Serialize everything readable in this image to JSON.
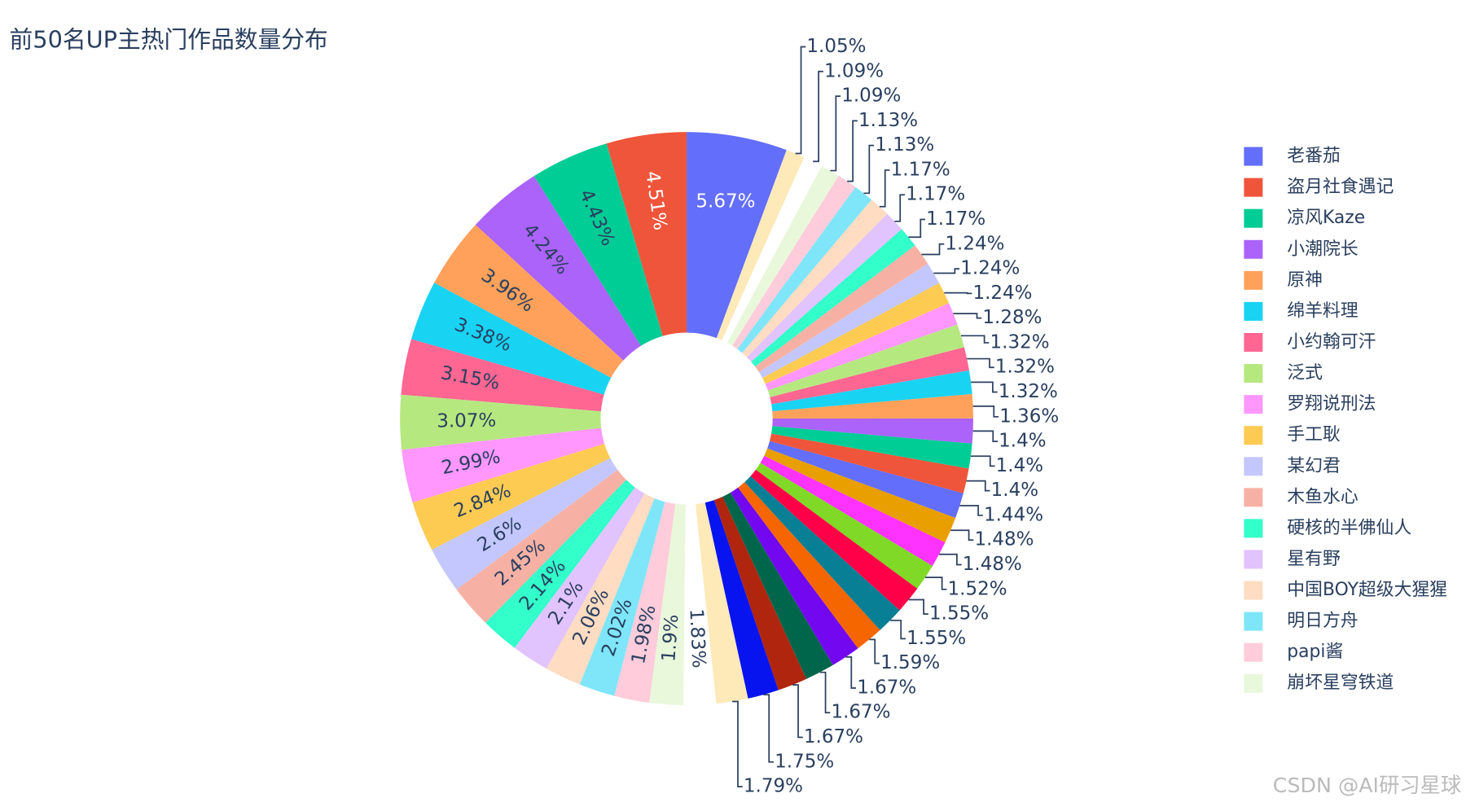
{
  "chart_data": {
    "type": "donut",
    "title": "前50名UP主热门作品数量分布",
    "watermark": "CSDN @AI研习星球",
    "categories": [
      "老番茄",
      "盗月社食遇记",
      "凉风Kaze",
      "小潮院长",
      "原神",
      "绵羊料理",
      "小约翰可汗",
      "泛式",
      "罗翔说刑法",
      "手工耿",
      "某幻君",
      "木鱼水心",
      "硬核的半佛仙人",
      "星有野",
      "中国BOY超级大猩猩",
      "明日方舟",
      "papi酱",
      "崩坏星穹铁道",
      null,
      null,
      null,
      null,
      null,
      null,
      null,
      null,
      null,
      null,
      null,
      null,
      null,
      null,
      null,
      null,
      null,
      null,
      null,
      null,
      null,
      null,
      null,
      null,
      null,
      null,
      null,
      null,
      null,
      null,
      null,
      null
    ],
    "values": [
      5.67,
      4.51,
      4.43,
      4.24,
      3.96,
      3.38,
      3.15,
      3.07,
      2.99,
      2.84,
      2.6,
      2.45,
      2.14,
      2.1,
      2.06,
      2.02,
      1.98,
      1.9,
      1.83,
      1.79,
      1.75,
      1.67,
      1.67,
      1.67,
      1.59,
      1.55,
      1.55,
      1.52,
      1.48,
      1.48,
      1.44,
      1.4,
      1.4,
      1.4,
      1.36,
      1.32,
      1.32,
      1.32,
      1.28,
      1.24,
      1.24,
      1.24,
      1.17,
      1.17,
      1.17,
      1.13,
      1.13,
      1.09,
      1.09,
      1.05
    ],
    "value_labels": [
      "5.67%",
      "4.51%",
      "4.43%",
      "4.24%",
      "3.96%",
      "3.38%",
      "3.15%",
      "3.07%",
      "2.99%",
      "2.84%",
      "2.6%",
      "2.45%",
      "2.14%",
      "2.1%",
      "2.06%",
      "2.02%",
      "1.98%",
      "1.9%",
      "1.83%",
      "1.79%",
      "1.75%",
      "1.67%",
      "1.67%",
      "1.67%",
      "1.59%",
      "1.55%",
      "1.55%",
      "1.52%",
      "1.48%",
      "1.48%",
      "1.44%",
      "1.4%",
      "1.4%",
      "1.4%",
      "1.36%",
      "1.32%",
      "1.32%",
      "1.32%",
      "1.28%",
      "1.24%",
      "1.24%",
      "1.24%",
      "1.17%",
      "1.17%",
      "1.17%",
      "1.13%",
      "1.13%",
      "1.09%",
      "1.09%",
      "1.05%"
    ],
    "colors": [
      "#636efa",
      "#ef553b",
      "#00cc96",
      "#ab63fa",
      "#ffa15a",
      "#19d3f3",
      "#ff6692",
      "#b6e880",
      "#ff97ff",
      "#fecb52",
      "#c3c7fd",
      "#f7b1a4",
      "#33ffca",
      "#e1c3fd",
      "#ffdcc2",
      "#7ee6f8",
      "#ffccdb",
      "#e9f8db",
      "#ffffff",
      "#fee9b8",
      "#0714ef",
      "#b0250e",
      "#00664b",
      "#7308f0",
      "#f56600",
      "#087f94",
      "#ff0048",
      "#7fd926",
      "#ff33ff",
      "#e99f00",
      "#636efa",
      "#ef553b",
      "#00cc96",
      "#ab63fa",
      "#ffa15a",
      "#19d3f3",
      "#ff6692",
      "#b6e880",
      "#ff97ff",
      "#fecb52",
      "#c3c7fd",
      "#f7b1a4",
      "#33ffca",
      "#e1c3fd",
      "#ffdcc2",
      "#7ee6f8",
      "#ffccdb",
      "#e9f8db",
      "#ffffff",
      "#fee9b8"
    ],
    "hole": 0.3,
    "direction": "counterclockwise"
  }
}
